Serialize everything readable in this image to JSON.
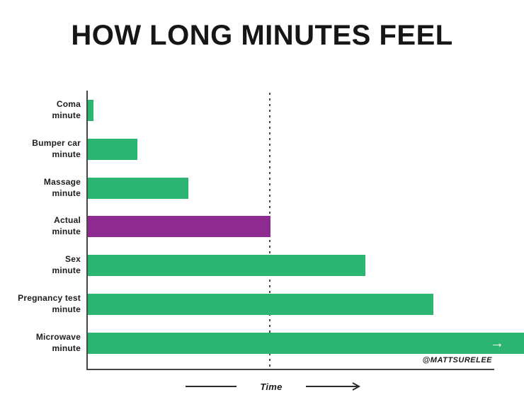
{
  "title": "HOW LONG MINUTES FEEL",
  "credit": "@MATTSURELEE",
  "axis": {
    "label": "Time"
  },
  "icons": {
    "overflow_arrow": "→"
  },
  "colors": {
    "green": "#2cb473",
    "purple": "#8f2a90",
    "axis": "#474747",
    "text": "#1d1d1d"
  },
  "chart_data": {
    "type": "bar",
    "orientation": "horizontal",
    "title": "HOW LONG MINUTES FEEL",
    "xlabel": "Time",
    "grid": false,
    "legend": false,
    "categories": [
      "Coma minute",
      "Bumper car minute",
      "Massage minute",
      "Actual minute",
      "Sex minute",
      "Pregnancy test minute",
      "Microwave minute"
    ],
    "label_lines": [
      [
        "Coma",
        "minute"
      ],
      [
        "Bumper car",
        "minute"
      ],
      [
        "Massage",
        "minute"
      ],
      [
        "Actual",
        "minute"
      ],
      [
        "Sex",
        "minute"
      ],
      [
        "Pregnancy test",
        "minute"
      ],
      [
        "Microwave",
        "minute"
      ]
    ],
    "values": [
      0.03,
      0.27,
      0.55,
      1.0,
      1.52,
      1.89,
      2.4
    ],
    "units": "perceived duration relative to an actual minute (actual minute = 1.0)",
    "highlight_index": 3,
    "highlight_note": "Actual minute bar is purple; all other bars are green",
    "overflow_index": 6,
    "overflow_note": "Microwave minute bar runs off the right edge of the chart with a white arrow; 2.4 is the minimum visible value",
    "reference_line": {
      "at_value": 1.0,
      "style": "dotted",
      "meaning": "length of an actual minute"
    }
  }
}
